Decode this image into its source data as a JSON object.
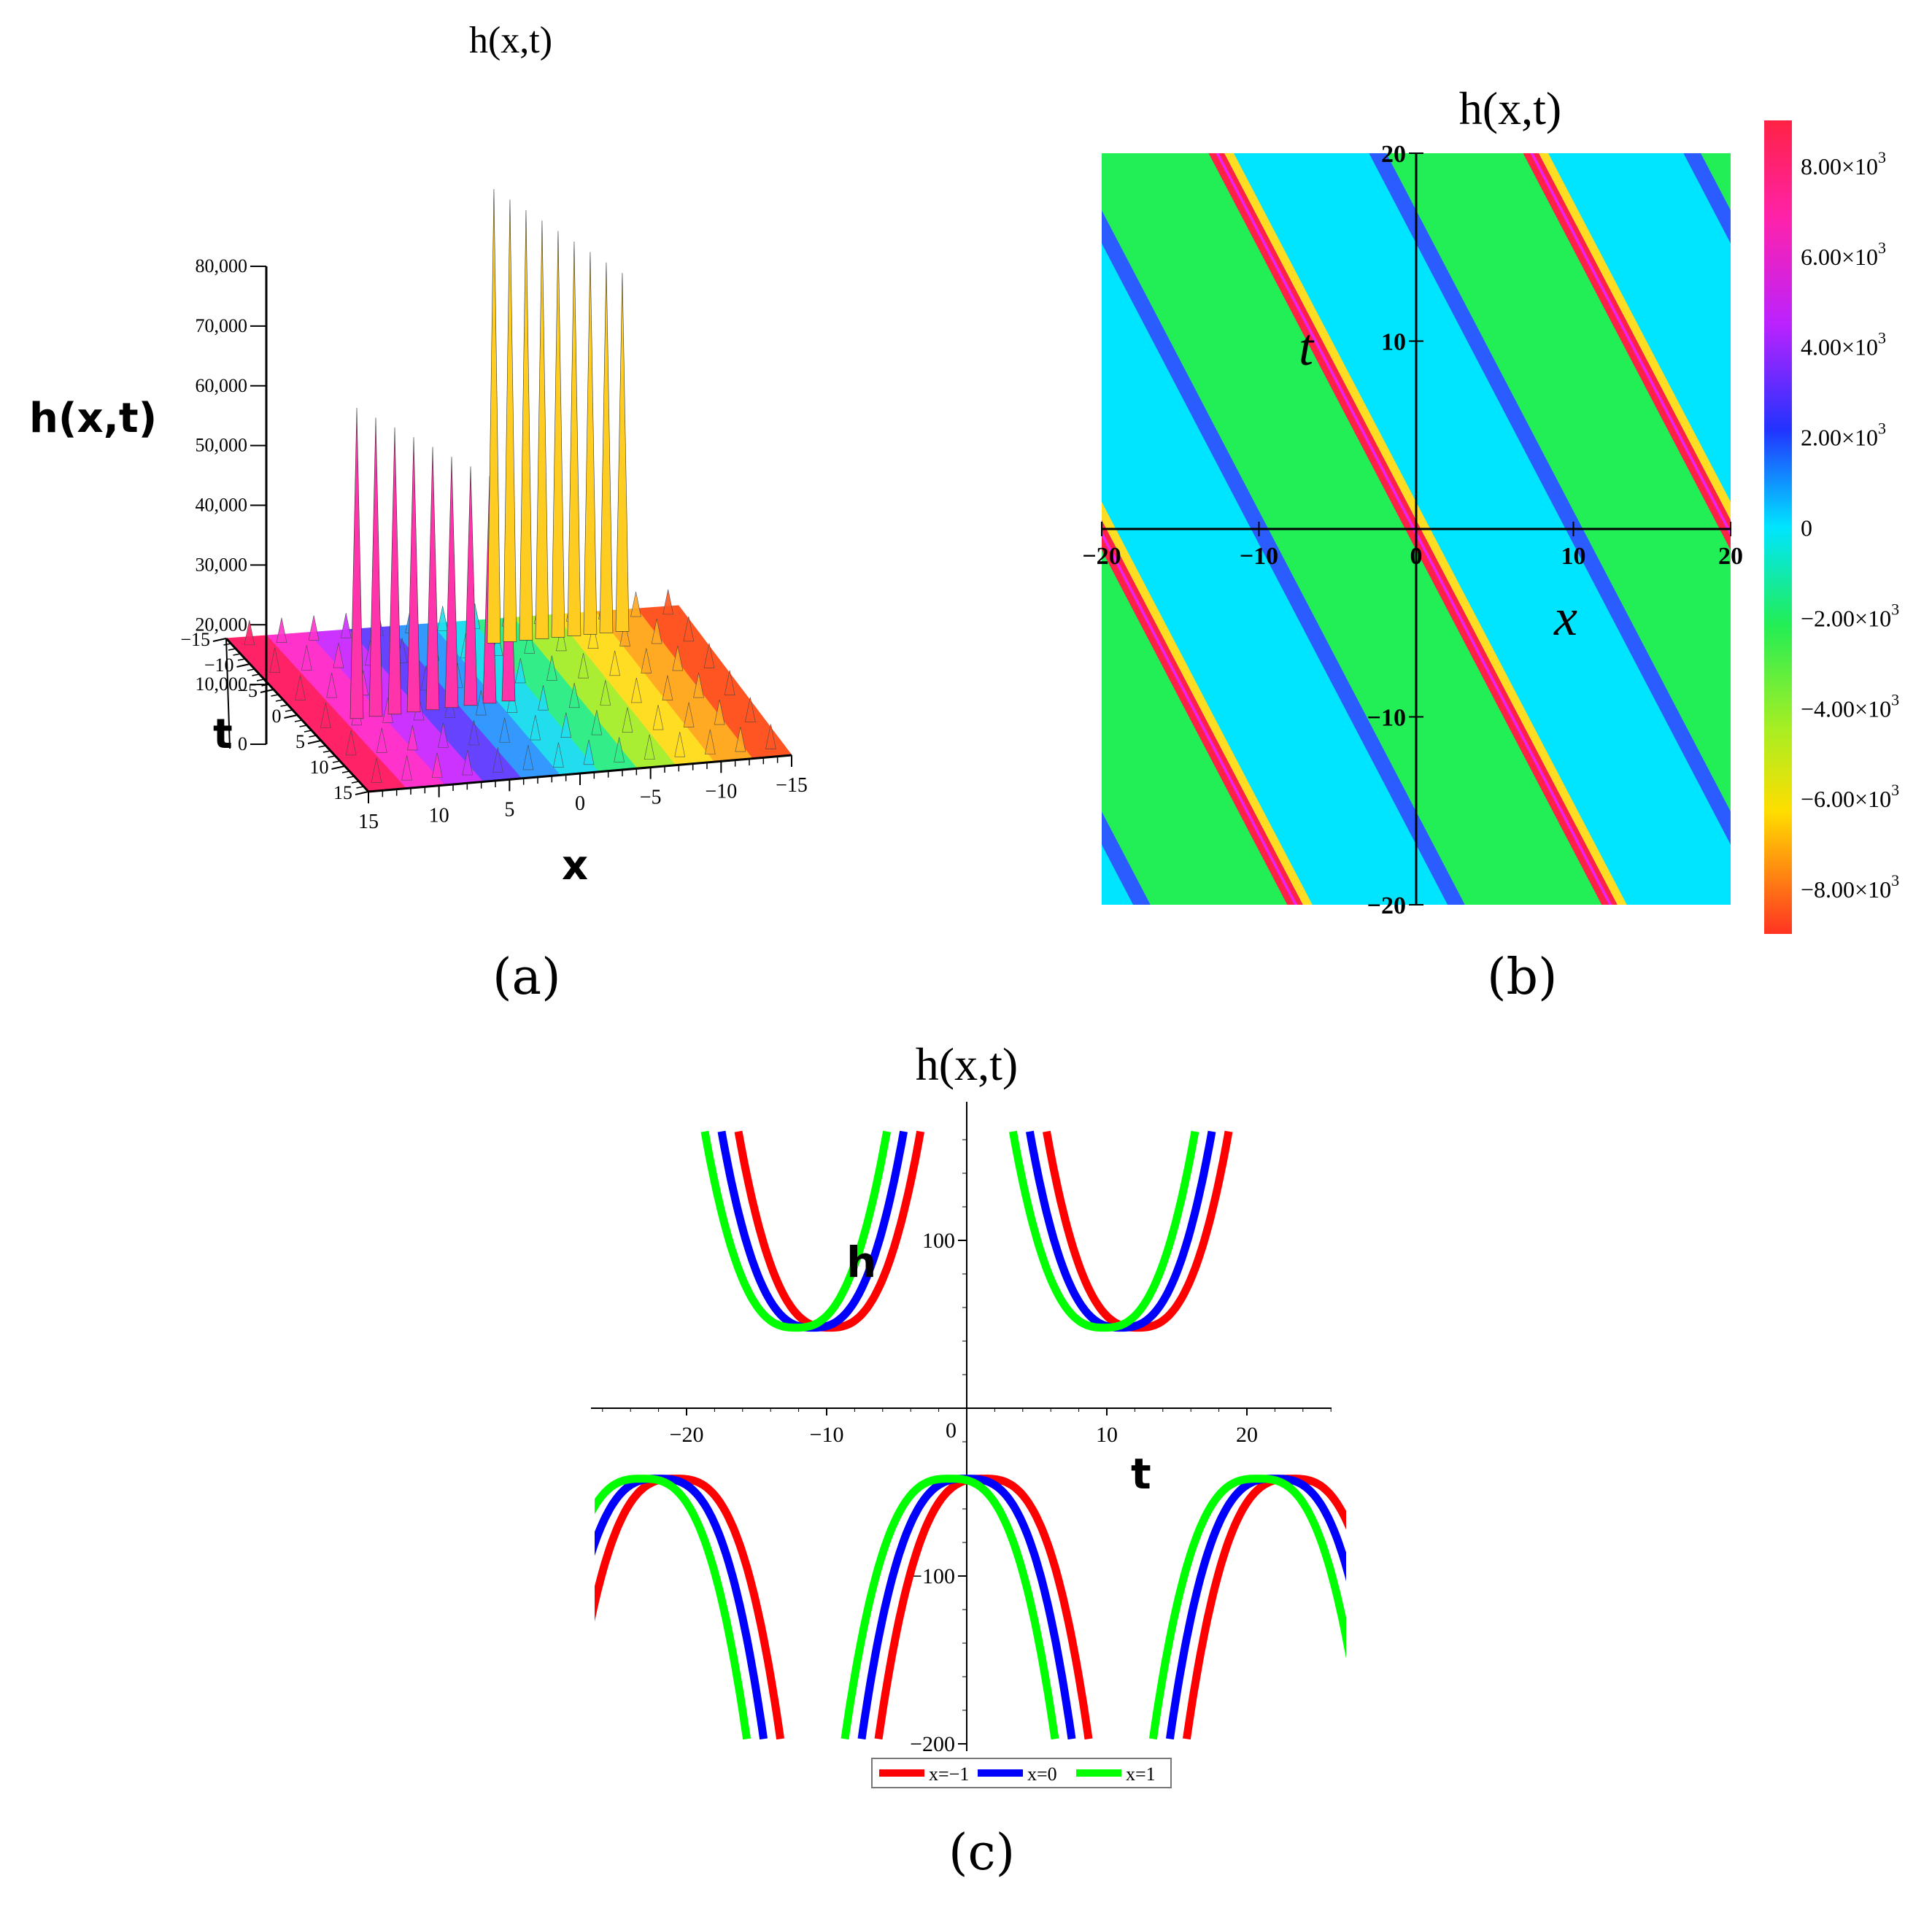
{
  "chart_data": [
    {
      "type": "surface3d",
      "panel_label": "(a)",
      "title": "h(x,t)",
      "zlabel": "h(x,t)",
      "xlabel": "x",
      "ylabel": "t",
      "z_ticks": [
        "0",
        "10,000",
        "20,000",
        "30,000",
        "40,000",
        "50,000",
        "60,000",
        "70,000",
        "80,000"
      ],
      "x_ticks": [
        "15",
        "10",
        "5",
        "0",
        "−5",
        "−10",
        "−15"
      ],
      "t_ticks": [
        "−15",
        "−10",
        "−5",
        "0",
        "5",
        "10",
        "15"
      ],
      "xlim": [
        -15,
        15
      ],
      "tlim": [
        -15,
        15
      ],
      "zlim": [
        0,
        80000
      ]
    },
    {
      "type": "heatmap",
      "panel_label": "(b)",
      "title": "h(x,t)",
      "xlabel": "x",
      "ylabel": "t",
      "xlim": [
        -20,
        20
      ],
      "ylim": [
        -20,
        20
      ],
      "x_ticks": [
        "−20",
        "−10",
        "0",
        "10",
        "20"
      ],
      "y_ticks": [
        "20",
        "10",
        "−10",
        "−20"
      ],
      "colorbar_ticks": [
        "8.00×10",
        "6.00×10",
        "4.00×10",
        "2.00×10",
        "0",
        "−2.00×10",
        "−4.00×10",
        "−6.00×10",
        "−8.00×10"
      ],
      "colorbar_exponent": "3",
      "colorbar_values": [
        8000,
        6000,
        4000,
        2000,
        0,
        -2000,
        -4000,
        -6000,
        -8000
      ],
      "stripe_slope": -1.6,
      "stripe_period_x": 20,
      "colors": {
        "cyan": "#00e5ff",
        "green": "#22ee55",
        "red": "#ff2244",
        "magenta": "#ee22ee"
      }
    },
    {
      "type": "line",
      "panel_label": "(c)",
      "title": "h(x,t)",
      "xlabel": "t",
      "ylabel": "h",
      "xlim": [
        -27,
        27
      ],
      "ylim": [
        -200,
        175
      ],
      "x_ticks": [
        "−20",
        "−10",
        "0",
        "10",
        "20"
      ],
      "x_tick_values": [
        -20,
        -10,
        0,
        10,
        20
      ],
      "y_ticks": [
        "100",
        "−100",
        "−200"
      ],
      "y_tick_values": [
        100,
        -100,
        -200
      ],
      "origin_label": "0",
      "series": [
        {
          "name": "x=−1",
          "color": "#ff0000",
          "shift": 1.2
        },
        {
          "name": "x=0",
          "color": "#0000ff",
          "shift": 0
        },
        {
          "name": "x=1",
          "color": "#00ff00",
          "shift": -1.2
        }
      ],
      "upper_branch_minima_t": [
        -11,
        11
      ],
      "upper_branch_min_h": 48,
      "lower_branch_maxima_t": [
        -22,
        0,
        22
      ],
      "lower_branch_max_h": -42
    }
  ]
}
